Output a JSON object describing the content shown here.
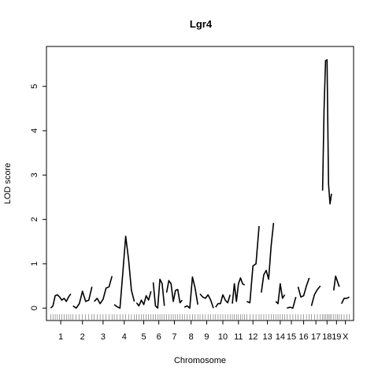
{
  "chart_data": {
    "type": "line",
    "title": "Lgr4",
    "xlabel": "Chromosome",
    "ylabel": "LOD score",
    "ylim": [
      -0.28,
      5.9
    ],
    "yticks": [
      0,
      1,
      2,
      3,
      4,
      5
    ],
    "grid": false,
    "legend": "none",
    "line_color": "#000000",
    "chromosomes": [
      {
        "label": "1",
        "start": 0,
        "end": 10,
        "values": [
          0.0,
          0.05,
          0.28,
          0.3,
          0.25,
          0.18,
          0.22,
          0.15,
          0.25,
          0.32
        ]
      },
      {
        "label": "2",
        "start": 10,
        "end": 19.5,
        "values": [
          0.05,
          0.0,
          0.1,
          0.38,
          0.15,
          0.18,
          0.48
        ]
      },
      {
        "label": "3",
        "start": 19.5,
        "end": 28.5,
        "values": [
          0.15,
          0.22,
          0.1,
          0.2,
          0.45,
          0.48,
          0.72
        ]
      },
      {
        "label": "4",
        "start": 28.5,
        "end": 38.5,
        "values": [
          0.08,
          0.03,
          0.0,
          0.8,
          1.62,
          1.1,
          0.4,
          0.15
        ]
      },
      {
        "label": "5",
        "start": 38.5,
        "end": 46,
        "values": [
          0.12,
          0.05,
          0.18,
          0.08,
          0.28,
          0.18,
          0.38
        ]
      },
      {
        "label": "6",
        "start": 46,
        "end": 52,
        "values": [
          0.58,
          0.05,
          0.0,
          0.65,
          0.55,
          0.05
        ]
      },
      {
        "label": "7",
        "start": 52,
        "end": 60,
        "values": [
          0.35,
          0.62,
          0.55,
          0.15,
          0.4,
          0.42,
          0.12,
          0.18
        ]
      },
      {
        "label": "8",
        "start": 60,
        "end": 67,
        "values": [
          0.02,
          0.05,
          0.0,
          0.7,
          0.45,
          0.08
        ]
      },
      {
        "label": "9",
        "start": 67,
        "end": 74,
        "values": [
          0.32,
          0.25,
          0.22,
          0.3,
          0.18,
          0.0
        ]
      },
      {
        "label": "10",
        "start": 74,
        "end": 81.5,
        "values": [
          0.02,
          0.1,
          0.1,
          0.3,
          0.18,
          0.12,
          0.3
        ]
      },
      {
        "label": "11",
        "start": 81.5,
        "end": 88,
        "values": [
          0.1,
          0.55,
          0.15,
          0.55,
          0.68,
          0.55,
          0.52
        ]
      },
      {
        "label": "12",
        "start": 88,
        "end": 94.5,
        "values": [
          0.15,
          0.12,
          0.95,
          1.0,
          1.85
        ]
      },
      {
        "label": "13",
        "start": 94.5,
        "end": 101,
        "values": [
          0.35,
          0.75,
          0.85,
          0.65,
          1.4,
          1.92
        ]
      },
      {
        "label": "14",
        "start": 101,
        "end": 106,
        "values": [
          0.15,
          0.1,
          0.55,
          0.22,
          0.3
        ]
      },
      {
        "label": "15",
        "start": 106,
        "end": 111,
        "values": [
          0.0,
          0.02,
          0.0,
          0.25
        ]
      },
      {
        "label": "16",
        "start": 111,
        "end": 117,
        "values": [
          0.48,
          0.25,
          0.28,
          0.5,
          0.68
        ]
      },
      {
        "label": "17",
        "start": 117,
        "end": 122,
        "values": [
          0.05,
          0.3,
          0.42,
          0.5
        ]
      },
      {
        "label": "18",
        "start": 122,
        "end": 127,
        "values": [
          2.65,
          4.5,
          5.58,
          5.6,
          2.8,
          2.35,
          2.58
        ]
      },
      {
        "label": "19",
        "start": 127,
        "end": 130.5,
        "values": [
          0.4,
          0.72,
          0.6,
          0.48
        ]
      },
      {
        "label": "X",
        "start": 130.5,
        "end": 135,
        "values": [
          0.1,
          0.22,
          0.22,
          0.25
        ]
      }
    ]
  }
}
